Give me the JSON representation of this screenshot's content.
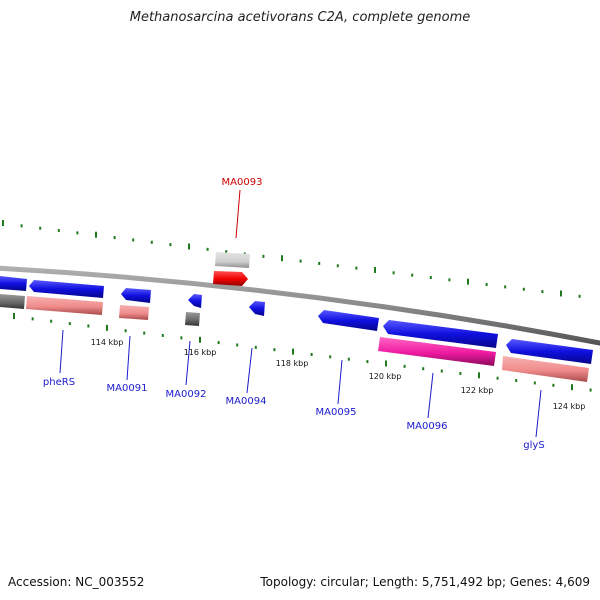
{
  "title": "Methanosarcina acetivorans C2A, complete genome",
  "footer": {
    "accession": "Accession: NC_003552",
    "summary": "Topology: circular; Length: 5,751,492 bp; Genes: 4,609"
  },
  "colors": {
    "background": "#ffffff",
    "backbone": "#8a8a8a",
    "tick": "#1f7a1f",
    "gene_label": "#1a1acc",
    "highlight_label": "#cc0000",
    "forward_cds": "#1010e0",
    "reverse_cds": "#1010e0",
    "rna_salmon": "#f08c8c",
    "pseudo_gray": "#707070",
    "highlight_gene": "#ee0000",
    "magenta_gene": "#ee1aa0",
    "light_gray_gene": "#cfcfcf"
  },
  "kbp_labels": [
    "114 kbp",
    "116 kbp",
    "118 kbp",
    "120 kbp",
    "122 kbp",
    "124 kbp"
  ],
  "gene_labels": [
    {
      "id": "pheRS",
      "text": "pheRS",
      "highlight": false
    },
    {
      "id": "ma0091",
      "text": "MA0091",
      "highlight": false
    },
    {
      "id": "ma0092",
      "text": "MA0092",
      "highlight": false
    },
    {
      "id": "ma0093",
      "text": "MA0093",
      "highlight": true
    },
    {
      "id": "ma0094",
      "text": "MA0094",
      "highlight": false
    },
    {
      "id": "ma0095",
      "text": "MA0095",
      "highlight": false
    },
    {
      "id": "ma0096",
      "text": "MA0096",
      "highlight": false
    },
    {
      "id": "glys",
      "text": "glyS",
      "highlight": false
    }
  ]
}
